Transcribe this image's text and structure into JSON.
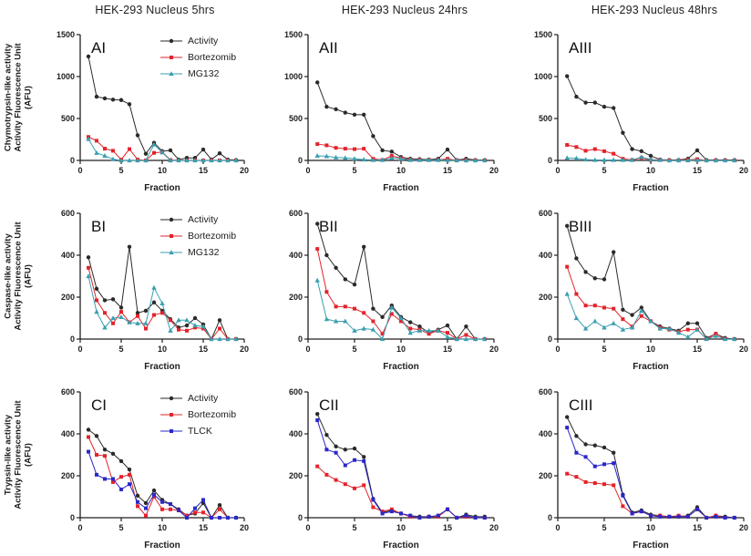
{
  "figure": {
    "column_titles": [
      "HEK-293 Nucleus 5hrs",
      "HEK-293 Nucleus 24hrs",
      "HEK-293 Nucleus 48hrs"
    ],
    "xlabel": "Fraction"
  },
  "colors": {
    "Activity": "#2b2a29",
    "Bortezomib": "#e4232b",
    "MG132": "#3a9fb1",
    "TLCK": "#2a28c8",
    "axis": "#231f20"
  },
  "chart_data": [
    {
      "type": "line",
      "panel": "AI",
      "ylabel_lines": [
        "Chymotrypsin-like activity",
        "Activity Fluorescence Unit",
        "(AFU)"
      ],
      "xlabel": "Fraction",
      "legend": true,
      "xlim": [
        0,
        20
      ],
      "ylim": [
        0,
        1500
      ],
      "xticks": [
        0,
        5,
        10,
        15,
        20
      ],
      "yticks": [
        0,
        500,
        1000,
        1500
      ],
      "x": [
        1,
        2,
        3,
        4,
        5,
        6,
        7,
        8,
        9,
        10,
        11,
        12,
        13,
        14,
        15,
        16,
        17,
        18,
        19
      ],
      "series": [
        {
          "name": "Activity",
          "marker": "circle",
          "values": [
            1240,
            760,
            740,
            725,
            720,
            670,
            300,
            80,
            210,
            110,
            120,
            10,
            30,
            30,
            130,
            10,
            85,
            10,
            5
          ]
        },
        {
          "name": "Bortezomib",
          "marker": "square",
          "values": [
            280,
            235,
            140,
            115,
            10,
            135,
            10,
            0,
            90,
            100,
            5,
            0,
            0,
            0,
            0,
            0,
            0,
            0,
            0
          ]
        },
        {
          "name": "MG132",
          "marker": "triangle",
          "values": [
            255,
            90,
            55,
            15,
            0,
            0,
            0,
            0,
            190,
            95,
            0,
            0,
            0,
            0,
            0,
            0,
            0,
            0,
            0
          ]
        }
      ]
    },
    {
      "type": "line",
      "panel": "AII",
      "ylabel_lines": [],
      "xlabel": "Fraction",
      "legend": false,
      "xlim": [
        0,
        20
      ],
      "ylim": [
        0,
        1500
      ],
      "xticks": [
        0,
        5,
        10,
        15,
        20
      ],
      "yticks": [
        0,
        500,
        1000,
        1500
      ],
      "x": [
        1,
        2,
        3,
        4,
        5,
        6,
        7,
        8,
        9,
        10,
        11,
        12,
        13,
        14,
        15,
        16,
        17,
        18,
        19
      ],
      "series": [
        {
          "name": "Activity",
          "marker": "circle",
          "values": [
            930,
            640,
            610,
            570,
            545,
            545,
            290,
            120,
            105,
            40,
            20,
            15,
            10,
            20,
            130,
            5,
            20,
            5,
            5
          ]
        },
        {
          "name": "Bortezomib",
          "marker": "square",
          "values": [
            195,
            180,
            150,
            140,
            135,
            140,
            20,
            5,
            55,
            25,
            10,
            5,
            5,
            5,
            20,
            0,
            5,
            0,
            0
          ]
        },
        {
          "name": "MG132",
          "marker": "triangle",
          "values": [
            55,
            50,
            35,
            30,
            20,
            10,
            5,
            5,
            30,
            20,
            5,
            5,
            5,
            5,
            5,
            0,
            0,
            0,
            0
          ]
        }
      ]
    },
    {
      "type": "line",
      "panel": "AIII",
      "ylabel_lines": [],
      "xlabel": "Fraction",
      "legend": false,
      "xlim": [
        0,
        20
      ],
      "ylim": [
        0,
        1500
      ],
      "xticks": [
        0,
        5,
        10,
        15,
        20
      ],
      "yticks": [
        0,
        500,
        1000,
        1500
      ],
      "x": [
        1,
        2,
        3,
        4,
        5,
        6,
        7,
        8,
        9,
        10,
        11,
        12,
        13,
        14,
        15,
        16,
        17,
        18,
        19
      ],
      "series": [
        {
          "name": "Activity",
          "marker": "circle",
          "values": [
            1005,
            760,
            690,
            690,
            640,
            625,
            330,
            135,
            110,
            55,
            10,
            5,
            5,
            20,
            120,
            5,
            5,
            5,
            5
          ]
        },
        {
          "name": "Bortezomib",
          "marker": "square",
          "values": [
            185,
            160,
            115,
            135,
            110,
            80,
            20,
            5,
            30,
            5,
            5,
            0,
            0,
            5,
            15,
            0,
            0,
            0,
            0
          ]
        },
        {
          "name": "MG132",
          "marker": "triangle",
          "values": [
            30,
            25,
            10,
            5,
            5,
            5,
            5,
            5,
            40,
            10,
            5,
            0,
            0,
            0,
            5,
            0,
            0,
            0,
            0
          ]
        }
      ]
    },
    {
      "type": "line",
      "panel": "BI",
      "ylabel_lines": [
        "Caspase-like activity",
        "Activity Fluorescence Unit",
        "(AFU)"
      ],
      "xlabel": "Fraction",
      "legend": true,
      "xlim": [
        0,
        20
      ],
      "ylim": [
        0,
        600
      ],
      "xticks": [
        0,
        5,
        10,
        15,
        20
      ],
      "yticks": [
        0,
        200,
        400,
        600
      ],
      "x": [
        1,
        2,
        3,
        4,
        5,
        6,
        7,
        8,
        9,
        10,
        11,
        12,
        13,
        14,
        15,
        16,
        17,
        18,
        19
      ],
      "series": [
        {
          "name": "Activity",
          "marker": "circle",
          "values": [
            390,
            240,
            185,
            190,
            150,
            440,
            125,
            135,
            175,
            135,
            95,
            55,
            65,
            100,
            70,
            0,
            90,
            0,
            0
          ]
        },
        {
          "name": "Bortezomib",
          "marker": "square",
          "values": [
            340,
            185,
            125,
            75,
            130,
            80,
            110,
            50,
            115,
            125,
            90,
            45,
            40,
            55,
            50,
            0,
            50,
            0,
            0
          ]
        },
        {
          "name": "MG132",
          "marker": "triangle",
          "values": [
            300,
            130,
            55,
            100,
            105,
            80,
            75,
            75,
            245,
            170,
            40,
            90,
            90,
            65,
            60,
            0,
            0,
            0,
            0
          ]
        }
      ]
    },
    {
      "type": "line",
      "panel": "BII",
      "ylabel_lines": [],
      "xlabel": "Fraction",
      "legend": false,
      "xlim": [
        0,
        20
      ],
      "ylim": [
        0,
        600
      ],
      "xticks": [
        0,
        5,
        10,
        15,
        20
      ],
      "yticks": [
        0,
        200,
        400,
        600
      ],
      "x": [
        1,
        2,
        3,
        4,
        5,
        6,
        7,
        8,
        9,
        10,
        11,
        12,
        13,
        14,
        15,
        16,
        17,
        18,
        19
      ],
      "series": [
        {
          "name": "Activity",
          "marker": "circle",
          "values": [
            550,
            400,
            340,
            285,
            260,
            440,
            145,
            105,
            160,
            105,
            80,
            60,
            30,
            45,
            65,
            0,
            60,
            0,
            0
          ]
        },
        {
          "name": "Bortezomib",
          "marker": "square",
          "values": [
            430,
            225,
            155,
            155,
            145,
            125,
            85,
            25,
            120,
            85,
            50,
            45,
            25,
            40,
            30,
            0,
            20,
            0,
            0
          ]
        },
        {
          "name": "MG132",
          "marker": "triangle",
          "values": [
            280,
            95,
            85,
            85,
            40,
            50,
            45,
            0,
            150,
            100,
            30,
            40,
            40,
            40,
            10,
            0,
            0,
            0,
            0
          ]
        }
      ]
    },
    {
      "type": "line",
      "panel": "BIII",
      "ylabel_lines": [],
      "xlabel": "Fraction",
      "legend": false,
      "xlim": [
        0,
        20
      ],
      "ylim": [
        0,
        600
      ],
      "xticks": [
        0,
        5,
        10,
        15,
        20
      ],
      "yticks": [
        0,
        200,
        400,
        600
      ],
      "x": [
        1,
        2,
        3,
        4,
        5,
        6,
        7,
        8,
        9,
        10,
        11,
        12,
        13,
        14,
        15,
        16,
        17,
        18,
        19
      ],
      "series": [
        {
          "name": "Activity",
          "marker": "circle",
          "values": [
            540,
            385,
            320,
            290,
            285,
            415,
            140,
            115,
            150,
            85,
            60,
            50,
            40,
            75,
            75,
            5,
            25,
            5,
            0
          ]
        },
        {
          "name": "Bortezomib",
          "marker": "square",
          "values": [
            345,
            215,
            160,
            160,
            150,
            145,
            95,
            60,
            110,
            85,
            55,
            45,
            35,
            45,
            45,
            0,
            25,
            0,
            0
          ]
        },
        {
          "name": "MG132",
          "marker": "triangle",
          "values": [
            215,
            100,
            50,
            85,
            55,
            75,
            45,
            55,
            135,
            85,
            50,
            50,
            30,
            10,
            45,
            0,
            15,
            0,
            0
          ]
        }
      ]
    },
    {
      "type": "line",
      "panel": "CI",
      "ylabel_lines": [
        "Trypsin-like activity",
        "Activity Fluorescence Unit",
        "(AFU)"
      ],
      "xlabel": "Fraction",
      "legend": true,
      "xlim": [
        0,
        20
      ],
      "ylim": [
        0,
        600
      ],
      "xticks": [
        0,
        5,
        10,
        15,
        20
      ],
      "yticks": [
        0,
        200,
        400,
        600
      ],
      "x": [
        1,
        2,
        3,
        4,
        5,
        6,
        7,
        8,
        9,
        10,
        11,
        12,
        13,
        14,
        15,
        16,
        17,
        18,
        19
      ],
      "series": [
        {
          "name": "Activity",
          "marker": "circle",
          "values": [
            420,
            390,
            325,
            305,
            270,
            230,
            105,
            70,
            130,
            85,
            65,
            40,
            10,
            20,
            70,
            0,
            60,
            0,
            0
          ]
        },
        {
          "name": "Bortezomib",
          "marker": "square",
          "values": [
            385,
            300,
            295,
            170,
            195,
            205,
            55,
            10,
            100,
            40,
            40,
            35,
            10,
            25,
            25,
            0,
            40,
            0,
            0
          ]
        },
        {
          "name": "TLCK",
          "marker": "square",
          "values": [
            315,
            205,
            185,
            185,
            135,
            160,
            75,
            45,
            110,
            75,
            65,
            35,
            0,
            45,
            85,
            0,
            0,
            0,
            0
          ]
        }
      ]
    },
    {
      "type": "line",
      "panel": "CII",
      "ylabel_lines": [],
      "xlabel": "Fraction",
      "legend": false,
      "xlim": [
        0,
        20
      ],
      "ylim": [
        0,
        600
      ],
      "xticks": [
        0,
        5,
        10,
        15,
        20
      ],
      "yticks": [
        0,
        200,
        400,
        600
      ],
      "x": [
        1,
        2,
        3,
        4,
        5,
        6,
        7,
        8,
        9,
        10,
        11,
        12,
        13,
        14,
        15,
        16,
        17,
        18,
        19
      ],
      "series": [
        {
          "name": "Activity",
          "marker": "circle",
          "values": [
            495,
            395,
            340,
            325,
            330,
            290,
            90,
            25,
            35,
            20,
            10,
            5,
            5,
            10,
            40,
            0,
            15,
            5,
            5
          ]
        },
        {
          "name": "Bortezomib",
          "marker": "square",
          "values": [
            245,
            205,
            180,
            160,
            140,
            155,
            50,
            30,
            40,
            20,
            5,
            0,
            5,
            5,
            40,
            0,
            5,
            0,
            0
          ]
        },
        {
          "name": "TLCK",
          "marker": "square",
          "values": [
            465,
            325,
            310,
            250,
            275,
            270,
            85,
            20,
            30,
            20,
            10,
            0,
            5,
            10,
            40,
            0,
            10,
            0,
            0
          ]
        }
      ]
    },
    {
      "type": "line",
      "panel": "CIII",
      "ylabel_lines": [],
      "xlabel": "Fraction",
      "legend": false,
      "xlim": [
        0,
        20
      ],
      "ylim": [
        0,
        600
      ],
      "xticks": [
        0,
        5,
        10,
        15,
        20
      ],
      "yticks": [
        0,
        200,
        400,
        600
      ],
      "x": [
        1,
        2,
        3,
        4,
        5,
        6,
        7,
        8,
        9,
        10,
        11,
        12,
        13,
        14,
        15,
        16,
        17,
        18,
        19
      ],
      "series": [
        {
          "name": "Activity",
          "marker": "circle",
          "values": [
            480,
            390,
            350,
            345,
            335,
            310,
            110,
            25,
            35,
            15,
            10,
            5,
            5,
            10,
            50,
            0,
            10,
            5,
            0
          ]
        },
        {
          "name": "Bortezomib",
          "marker": "square",
          "values": [
            210,
            195,
            170,
            165,
            160,
            155,
            55,
            20,
            30,
            10,
            10,
            5,
            10,
            5,
            40,
            0,
            10,
            0,
            0
          ]
        },
        {
          "name": "TLCK",
          "marker": "square",
          "values": [
            430,
            310,
            290,
            245,
            255,
            260,
            105,
            20,
            30,
            10,
            5,
            5,
            5,
            5,
            40,
            0,
            5,
            0,
            0
          ]
        }
      ]
    }
  ]
}
